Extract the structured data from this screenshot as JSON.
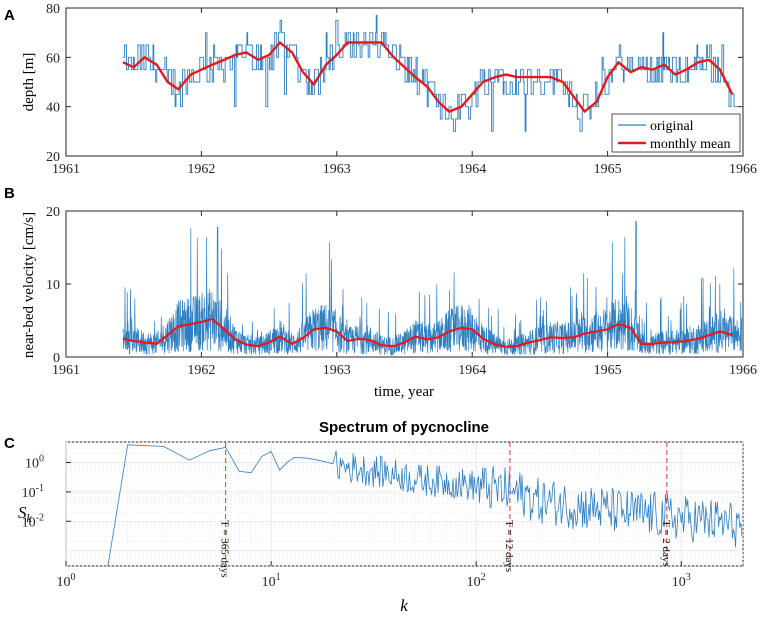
{
  "colors": {
    "series": "#2f7fc1",
    "mean": "#e41a1c",
    "refline": "#e34a4a",
    "axis": "#262626",
    "grid": "#e3e3e3",
    "minorgrid": "#f1f1f1"
  },
  "chart_data": [
    {
      "panel": "A",
      "type": "line",
      "title": "",
      "xlabel": "",
      "ylabel": "depth [m]",
      "xlim": [
        1961,
        1966
      ],
      "ylim": [
        20,
        80
      ],
      "xticks": [
        "1961",
        "1962",
        "1963",
        "1964",
        "1965",
        "1966"
      ],
      "yticks": [
        "20",
        "40",
        "60",
        "80"
      ],
      "legend": {
        "position": "bottom-right",
        "entries": [
          "original",
          "monthly mean"
        ]
      },
      "series": [
        {
          "name": "monthly mean",
          "x": [
            1961.42,
            1961.5,
            1961.58,
            1961.67,
            1961.75,
            1961.83,
            1961.92,
            1962.0,
            1962.08,
            1962.17,
            1962.25,
            1962.33,
            1962.42,
            1962.5,
            1962.58,
            1962.67,
            1962.75,
            1962.83,
            1962.92,
            1963.0,
            1963.08,
            1963.17,
            1963.25,
            1963.33,
            1963.42,
            1963.5,
            1963.58,
            1963.67,
            1963.75,
            1963.83,
            1963.92,
            1964.0,
            1964.08,
            1964.17,
            1964.25,
            1964.33,
            1964.42,
            1964.5,
            1964.58,
            1964.67,
            1964.75,
            1964.83,
            1964.92,
            1965.0,
            1965.08,
            1965.17,
            1965.25,
            1965.33,
            1965.42,
            1965.5,
            1965.58,
            1965.67,
            1965.75,
            1965.83,
            1965.92
          ],
          "values": [
            58,
            56,
            60,
            57,
            50,
            47,
            53,
            55,
            57,
            59,
            61,
            62,
            59,
            61,
            66,
            62,
            54,
            49,
            57,
            61,
            66,
            66,
            66,
            66,
            60,
            56,
            52,
            48,
            42,
            38,
            40,
            45,
            50,
            52,
            53,
            52,
            52,
            52,
            52,
            50,
            44,
            38,
            42,
            52,
            58,
            54,
            56,
            55,
            57,
            53,
            55,
            58,
            59,
            55,
            45
          ]
        },
        {
          "name": "original",
          "note": "stair-step depth record, values quantized to ~5 m, fluctuating around the monthly mean"
        }
      ]
    },
    {
      "panel": "B",
      "type": "line",
      "title": "",
      "xlabel": "time, year",
      "ylabel": "near-bed velocity [cm/s]",
      "xlim": [
        1961,
        1966
      ],
      "ylim": [
        0,
        20
      ],
      "xticks": [
        "1961",
        "1962",
        "1963",
        "1964",
        "1965",
        "1966"
      ],
      "yticks": [
        "0",
        "10",
        "20"
      ],
      "series": [
        {
          "name": "monthly mean",
          "x": [
            1961.42,
            1961.5,
            1961.58,
            1961.67,
            1961.75,
            1961.83,
            1961.92,
            1962.0,
            1962.08,
            1962.17,
            1962.25,
            1962.33,
            1962.42,
            1962.5,
            1962.58,
            1962.67,
            1962.75,
            1962.83,
            1962.92,
            1963.0,
            1963.08,
            1963.17,
            1963.25,
            1963.33,
            1963.42,
            1963.5,
            1963.58,
            1963.67,
            1963.75,
            1963.83,
            1963.92,
            1964.0,
            1964.08,
            1964.17,
            1964.25,
            1964.33,
            1964.42,
            1964.5,
            1964.58,
            1964.67,
            1964.75,
            1964.83,
            1964.92,
            1965.0,
            1965.08,
            1965.17,
            1965.25,
            1965.33,
            1965.42,
            1965.5,
            1965.58,
            1965.67,
            1965.75,
            1965.83,
            1965.92
          ],
          "values": [
            2.5,
            2.2,
            2.0,
            1.8,
            3.0,
            4.2,
            4.5,
            4.8,
            5.2,
            3.8,
            2.4,
            1.7,
            1.5,
            2.0,
            2.8,
            1.8,
            2.6,
            3.8,
            4.0,
            3.5,
            2.2,
            2.5,
            2.3,
            1.6,
            1.5,
            2.0,
            2.8,
            2.4,
            2.7,
            3.5,
            4.0,
            3.8,
            2.5,
            1.7,
            1.4,
            1.5,
            2.0,
            2.3,
            2.7,
            2.6,
            2.7,
            3.2,
            3.5,
            3.8,
            4.5,
            4.0,
            1.8,
            1.8,
            2.0,
            2.0,
            2.2,
            2.5,
            3.0,
            3.5,
            3.0
          ]
        },
        {
          "name": "original",
          "note": "dense noisy velocity record with spikes up to ~18-19 cm/s near 1962.1 and 1965.2"
        }
      ]
    },
    {
      "panel": "C",
      "type": "line",
      "title": "Spectrum of pycnocline",
      "xlabel": "k",
      "ylabel": "S_k",
      "xscale": "log",
      "yscale": "log",
      "xlim": [
        1,
        2000
      ],
      "ylim": [
        0.0003,
        5
      ],
      "xticks": [
        "10^0",
        "10^1",
        "10^2",
        "10^3"
      ],
      "yticks": [
        "10^0",
        "10^-1",
        "10^-2"
      ],
      "reference_lines": [
        {
          "k": 6,
          "label": "T = 365 days"
        },
        {
          "k": 146,
          "label": "T = 12 days"
        },
        {
          "k": 850,
          "label": "T = 2 days"
        }
      ],
      "series": [
        {
          "name": "spectrum",
          "x": [
            1.6,
            2.0,
            3.0,
            4.0,
            5.0,
            6.0,
            6.5,
            7.0,
            8.0,
            9.0,
            10.0,
            11.0,
            13.0,
            15.0,
            20.0,
            30.0,
            50.0,
            100.0,
            150.0,
            200.0,
            300.0,
            500.0,
            1000.0,
            2000.0
          ],
          "values": [
            0.0003,
            4.0,
            3.5,
            1.2,
            2.5,
            3.3,
            0.9,
            0.5,
            0.45,
            1.6,
            2.4,
            0.55,
            1.5,
            1.4,
            0.9,
            0.6,
            0.3,
            0.18,
            0.12,
            0.06,
            0.04,
            0.025,
            0.015,
            0.008
          ]
        }
      ]
    }
  ]
}
